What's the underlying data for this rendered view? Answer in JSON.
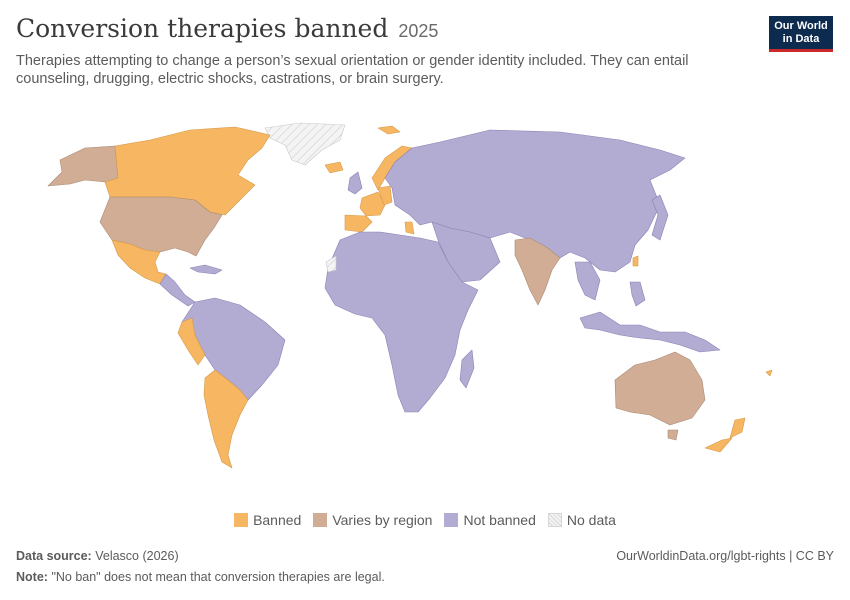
{
  "header": {
    "title": "Conversion therapies banned",
    "year": "2025",
    "subtitle": "Therapies attempting to change a person’s sexual orientation or gender identity included. They can entail counseling, drugging, electric shocks, castrations, or brain surgery.",
    "logo_line1": "Our World",
    "logo_line2": "in Data"
  },
  "colors": {
    "banned": "#f7b662",
    "varies": "#d2ad95",
    "not_banned": "#b2acd2",
    "no_data": "#eeeeee",
    "border": "#8a83b5"
  },
  "legend": [
    {
      "key": "banned",
      "label": "Banned"
    },
    {
      "key": "varies",
      "label": "Varies by region"
    },
    {
      "key": "not_banned",
      "label": "Not banned"
    },
    {
      "key": "no_data",
      "label": "No data"
    }
  ],
  "map_data": {
    "banned": [
      "Canada",
      "Mexico",
      "Ecuador",
      "Peru",
      "Chile",
      "Argentina",
      "Uruguay",
      "Iceland",
      "Norway",
      "Spain",
      "Portugal",
      "France",
      "Belgium",
      "Germany",
      "Malta",
      "Greece",
      "Cyprus",
      "Ireland",
      "Taiwan",
      "New Zealand",
      "Fiji"
    ],
    "varies": [
      "United States",
      "Alaska",
      "India",
      "Australia"
    ],
    "not_banned": [
      "South America (others)",
      "Central America",
      "Africa",
      "Russia",
      "China",
      "Middle East",
      "Southeast Asia",
      "Indonesia",
      "Eastern Europe",
      "United Kingdom",
      "Japan"
    ],
    "no_data": [
      "Greenland",
      "Western Sahara"
    ]
  },
  "footer": {
    "source_label": "Data source:",
    "source_value": "Velasco (2026)",
    "url": "OurWorldinData.org/lgbt-rights | CC BY",
    "note_label": "Note:",
    "note_value": "\"No ban\" does not mean that conversion therapies are legal."
  }
}
